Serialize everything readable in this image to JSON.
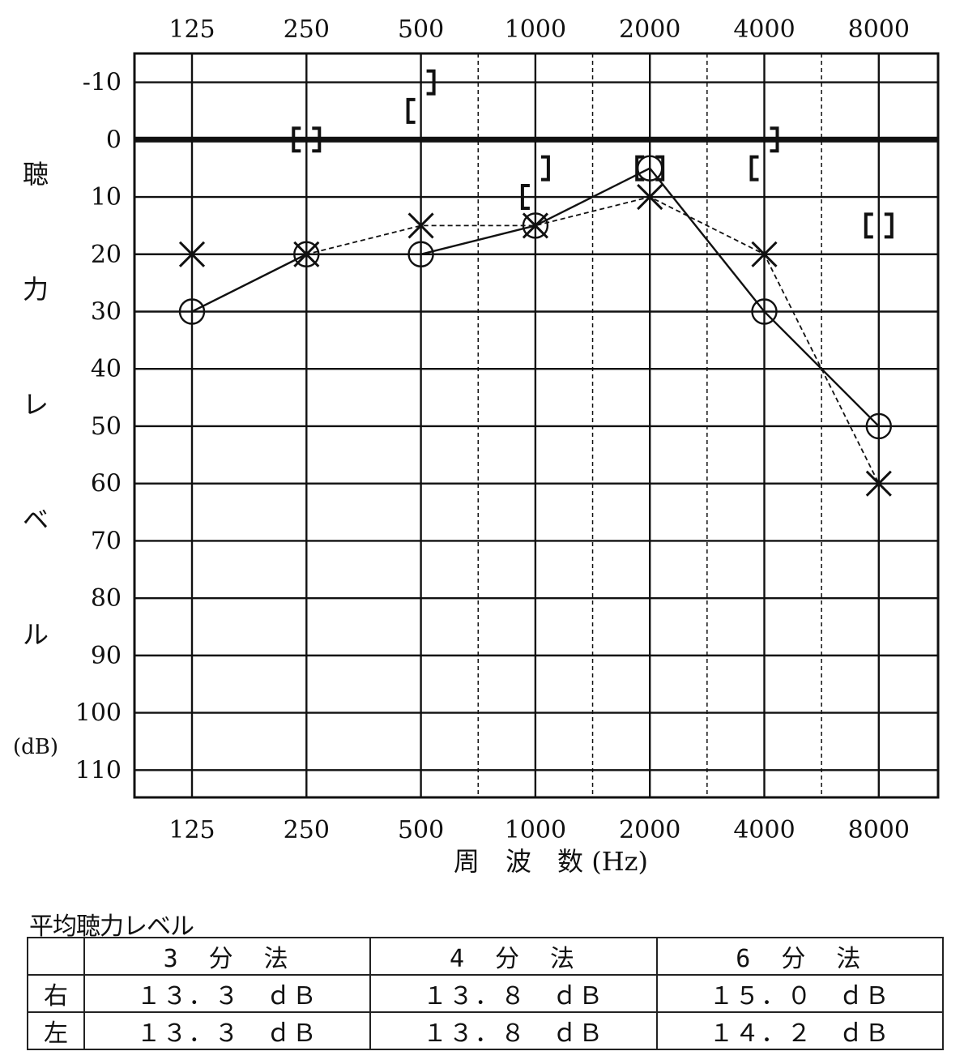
{
  "chart_data": {
    "type": "line",
    "x_categories": [
      "125",
      "250",
      "500",
      "1000",
      "2000",
      "4000",
      "8000"
    ],
    "half_octave_grid": [
      "750",
      "1500",
      "3000",
      "6000"
    ],
    "xlabel": "周　波　数 (Hz)",
    "ylabel_chars": [
      "聴",
      "力",
      "レ",
      "ベ",
      "ル"
    ],
    "yunit": "(dB)",
    "ylim": [
      -15,
      115
    ],
    "yticks": [
      "-10",
      "0",
      "10",
      "20",
      "30",
      "40",
      "50",
      "60",
      "70",
      "80",
      "90",
      "100",
      "110"
    ],
    "reference_line": 0,
    "grid": true,
    "series": [
      {
        "marker": "circle",
        "line": "solid",
        "values": [
          30,
          20,
          20,
          15,
          5,
          30,
          50
        ]
      },
      {
        "marker": "cross",
        "line": "dashed",
        "values": [
          20,
          20,
          15,
          15,
          10,
          20,
          60
        ]
      }
    ],
    "bone_conduction": [
      {
        "symbol": "[",
        "x": "250",
        "y": 0
      },
      {
        "symbol": "]",
        "x": "250",
        "y": 0
      },
      {
        "symbol": "[",
        "x": "500",
        "y": -5
      },
      {
        "symbol": "]",
        "x": "500",
        "y": -10
      },
      {
        "symbol": "[",
        "x": "1000",
        "y": 10
      },
      {
        "symbol": "]",
        "x": "1000",
        "y": 5
      },
      {
        "symbol": "[",
        "x": "2000",
        "y": 5
      },
      {
        "symbol": "]",
        "x": "2000",
        "y": 5
      },
      {
        "symbol": "[",
        "x": "4000",
        "y": 5
      },
      {
        "symbol": "]",
        "x": "4000",
        "y": 0
      },
      {
        "symbol": "[",
        "x": "8000",
        "y": 15
      },
      {
        "symbol": "]",
        "x": "8000",
        "y": 15
      }
    ]
  },
  "table": {
    "title": "平均聴力レベル",
    "methods": [
      "3　分　法",
      "4　分　法",
      "6　分　法"
    ],
    "rows": [
      {
        "label": "右",
        "values": [
          "１３．３　ｄＢ",
          "１３．８　ｄＢ",
          "１５．０　ｄＢ"
        ]
      },
      {
        "label": "左",
        "values": [
          "１３．３　ｄＢ",
          "１３．８　ｄＢ",
          "１４．２　ｄＢ"
        ]
      }
    ]
  }
}
